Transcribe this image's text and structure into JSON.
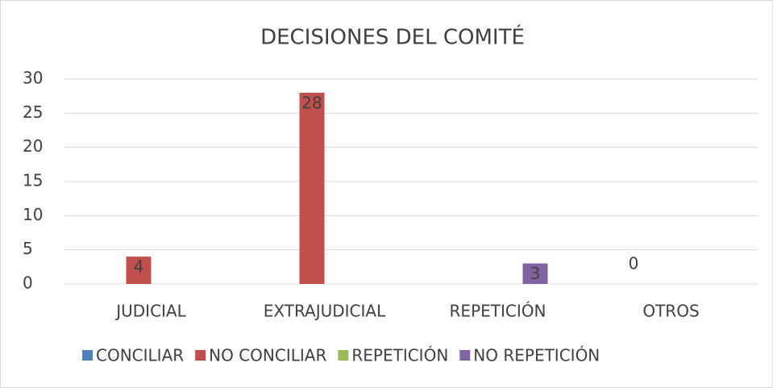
{
  "chart_data": {
    "type": "bar",
    "title": "DECISIONES DEL COMITÉ",
    "categories": [
      "JUDICIAL",
      "EXTRAJUDICIAL",
      "REPETICIÓN",
      "OTROS"
    ],
    "series": [
      {
        "name": "CONCILIAR",
        "color": "#4f81bd",
        "values": [
          null,
          null,
          null,
          0
        ]
      },
      {
        "name": "NO CONCILIAR",
        "color": "#c0504d",
        "values": [
          4,
          28,
          null,
          null
        ]
      },
      {
        "name": "REPETICIÓN",
        "color": "#9bbb59",
        "values": [
          null,
          null,
          null,
          null
        ]
      },
      {
        "name": "NO REPETICIÓN",
        "color": "#8064a2",
        "values": [
          null,
          null,
          3,
          null
        ]
      }
    ],
    "ylim": [
      0,
      30
    ],
    "yticks": [
      0,
      5,
      10,
      15,
      20,
      25,
      30
    ],
    "grid": true,
    "legend": "bottom"
  }
}
